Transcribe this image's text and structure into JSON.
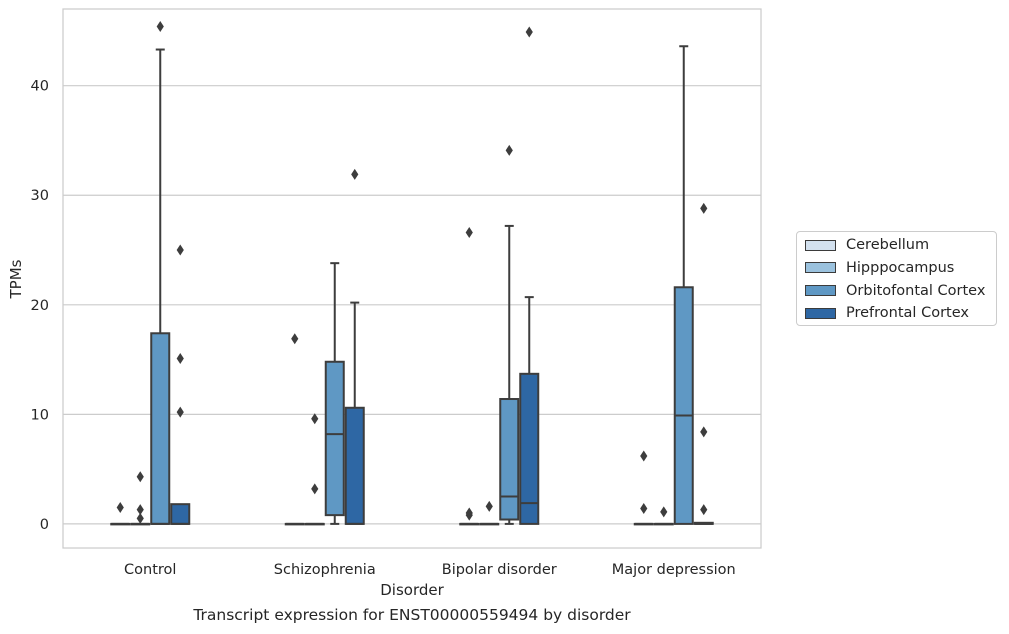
{
  "chart_data": {
    "type": "box",
    "title": "",
    "caption": "Transcript expression for ENST00000559494 by disorder",
    "xlabel": "Disorder",
    "ylabel": "TPMs",
    "ylim": [
      -2.2,
      47.0
    ],
    "yticks": [
      0,
      10,
      20,
      30,
      40
    ],
    "grid": true,
    "legend_position": "right",
    "categories": [
      "Control",
      "Schizophrenia",
      "Bipolar disorder",
      "Major depression"
    ],
    "series": [
      {
        "name": "Cerebellum",
        "color": "#d3e1ef",
        "boxes": [
          {
            "q1": 0,
            "median": 0,
            "q3": 0,
            "whisker_low": 0,
            "whisker_high": 0,
            "outliers": [
              1.5
            ]
          },
          {
            "q1": 0,
            "median": 0,
            "q3": 0,
            "whisker_low": 0,
            "whisker_high": 0,
            "outliers": [
              16.9
            ]
          },
          {
            "q1": 0,
            "median": 0,
            "q3": 0,
            "whisker_low": 0,
            "whisker_high": 0,
            "outliers": [
              0.8,
              1.0,
              26.6
            ]
          },
          {
            "q1": 0,
            "median": 0,
            "q3": 0,
            "whisker_low": 0,
            "whisker_high": 0,
            "outliers": [
              1.4,
              6.2
            ]
          }
        ]
      },
      {
        "name": "Hipppocampus",
        "color": "#9bc2de",
        "boxes": [
          {
            "q1": 0,
            "median": 0,
            "q3": 0,
            "whisker_low": 0,
            "whisker_high": 0,
            "outliers": [
              0.5,
              1.3,
              4.3
            ]
          },
          {
            "q1": 0,
            "median": 0,
            "q3": 0,
            "whisker_low": 0,
            "whisker_high": 0,
            "outliers": [
              3.2,
              9.6
            ]
          },
          {
            "q1": 0,
            "median": 0,
            "q3": 0,
            "whisker_low": 0,
            "whisker_high": 0,
            "outliers": [
              1.6
            ]
          },
          {
            "q1": 0,
            "median": 0,
            "q3": 0,
            "whisker_low": 0,
            "whisker_high": 0,
            "outliers": [
              1.1
            ]
          }
        ]
      },
      {
        "name": "Orbitofontal Cortex",
        "color": "#5f98c4",
        "boxes": [
          {
            "q1": 0,
            "median": 0,
            "q3": 17.4,
            "whisker_low": 0,
            "whisker_high": 43.3,
            "outliers": [
              45.4
            ]
          },
          {
            "q1": 0.8,
            "median": 8.2,
            "q3": 14.8,
            "whisker_low": 0,
            "whisker_high": 23.8,
            "outliers": []
          },
          {
            "q1": 0.4,
            "median": 2.5,
            "q3": 11.4,
            "whisker_low": 0,
            "whisker_high": 27.2,
            "outliers": [
              34.1
            ]
          },
          {
            "q1": 0,
            "median": 9.9,
            "q3": 21.6,
            "whisker_low": 0,
            "whisker_high": 43.6,
            "outliers": []
          }
        ]
      },
      {
        "name": "Prefrontal Cortex",
        "color": "#2e67a4",
        "boxes": [
          {
            "q1": 0,
            "median": 0,
            "q3": 1.8,
            "whisker_low": 0,
            "whisker_high": 1.8,
            "outliers": [
              10.2,
              15.1,
              25.0
            ]
          },
          {
            "q1": 0,
            "median": 0,
            "q3": 10.6,
            "whisker_low": 0,
            "whisker_high": 20.2,
            "outliers": [
              31.9
            ]
          },
          {
            "q1": 0,
            "median": 1.9,
            "q3": 13.7,
            "whisker_low": 0,
            "whisker_high": 20.7,
            "outliers": [
              44.9
            ]
          },
          {
            "q1": 0,
            "median": 0,
            "q3": 0.1,
            "whisker_low": 0,
            "whisker_high": 0.1,
            "outliers": [
              1.3,
              8.4,
              28.8
            ]
          }
        ]
      }
    ]
  }
}
